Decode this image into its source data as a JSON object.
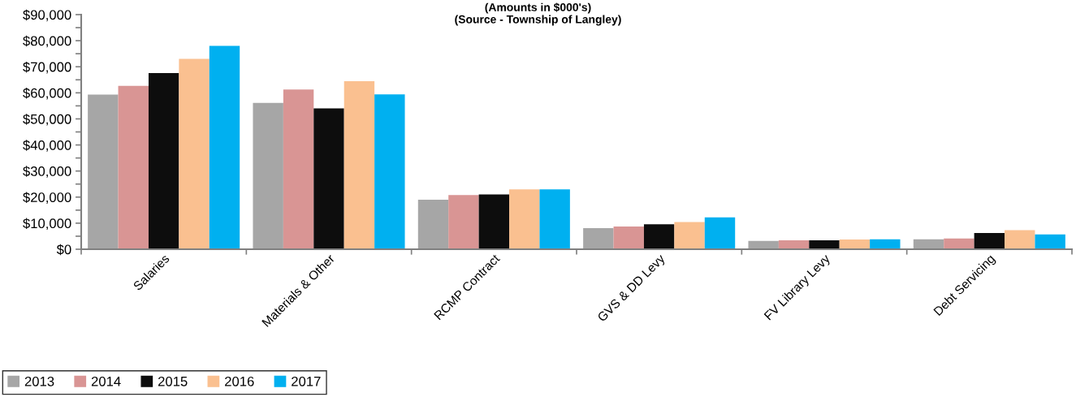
{
  "chart_data": {
    "type": "bar",
    "title": "(Amounts in $000's)",
    "annotations": [
      "(Source - Township of Langley)"
    ],
    "categories": [
      "Salaries",
      "Materials & Other",
      "RCMP Contract",
      "GVS & DD Levy",
      "FV Library Levy",
      "Debt Servicing"
    ],
    "series": [
      {
        "name": "2013",
        "color": "#a6a6a6",
        "values": [
          59300,
          56100,
          19000,
          8100,
          3200,
          3800
        ]
      },
      {
        "name": "2014",
        "color": "#d99594",
        "values": [
          62700,
          61300,
          20800,
          8700,
          3400,
          4100
        ]
      },
      {
        "name": "2015",
        "color": "#0d0d0d",
        "values": [
          67600,
          54000,
          21000,
          9600,
          3400,
          6200
        ]
      },
      {
        "name": "2016",
        "color": "#fac090",
        "values": [
          73000,
          64500,
          23000,
          10400,
          3700,
          7300
        ]
      },
      {
        "name": "2017",
        "color": "#00b0f0",
        "values": [
          78000,
          59400,
          23000,
          12200,
          3800,
          5700
        ]
      }
    ],
    "ylim": [
      0,
      90000
    ],
    "yticks": [
      {
        "value": 0,
        "label": "$0"
      },
      {
        "value": 5000,
        "label": null
      },
      {
        "value": 10000,
        "label": "$10,000"
      },
      {
        "value": 15000,
        "label": null
      },
      {
        "value": 20000,
        "label": "$20,000"
      },
      {
        "value": 25000,
        "label": null
      },
      {
        "value": 30000,
        "label": "$30,000"
      },
      {
        "value": 35000,
        "label": null
      },
      {
        "value": 40000,
        "label": "$40,000"
      },
      {
        "value": 45000,
        "label": null
      },
      {
        "value": 50000,
        "label": "$50,000"
      },
      {
        "value": 55000,
        "label": null
      },
      {
        "value": 60000,
        "label": "$60,000"
      },
      {
        "value": 65000,
        "label": null
      },
      {
        "value": 70000,
        "label": "$70,000"
      },
      {
        "value": 75000,
        "label": null
      },
      {
        "value": 80000,
        "label": "$80,000"
      },
      {
        "value": 85000,
        "label": null
      },
      {
        "value": 90000,
        "label": "$90,000"
      }
    ],
    "grid": false,
    "legend": "bottom left"
  }
}
